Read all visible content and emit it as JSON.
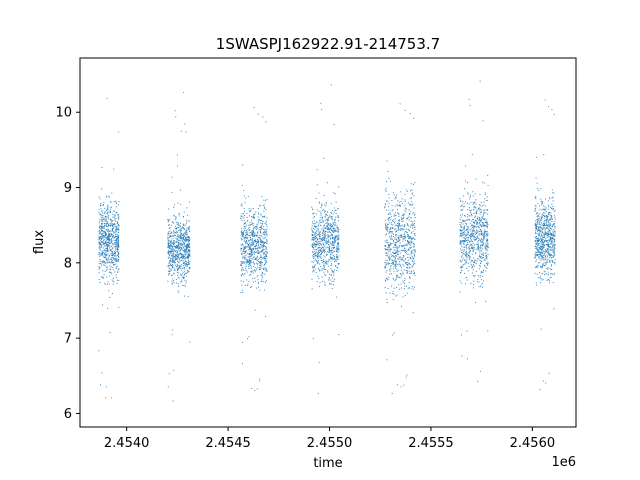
{
  "chart_data": {
    "type": "scatter",
    "title": "1SWASPJ162922.91-214753.7",
    "xlabel": "time",
    "ylabel": "flux",
    "x_offset_label": "1e6",
    "xlim": [
      2453770,
      2456215
    ],
    "ylim": [
      5.82,
      10.72
    ],
    "x_ticks": [
      2.454,
      2.4545,
      2.455,
      2.4555,
      2.456
    ],
    "x_tick_labels": [
      "2.4540",
      "2.4545",
      "2.4550",
      "2.4555",
      "2.4560"
    ],
    "y_ticks": [
      6,
      7,
      8,
      9,
      10
    ],
    "y_tick_labels": [
      "6",
      "7",
      "8",
      "9",
      "10"
    ],
    "grid": false,
    "marker_color": "#1f77b4",
    "seasons": [
      {
        "x_start": 2453860,
        "x_end": 2453960,
        "center": 8.3,
        "spread": 0.35
      },
      {
        "x_start": 2454200,
        "x_end": 2454310,
        "center": 8.2,
        "spread": 0.3
      },
      {
        "x_start": 2454560,
        "x_end": 2454690,
        "center": 8.25,
        "spread": 0.35
      },
      {
        "x_start": 2454910,
        "x_end": 2455045,
        "center": 8.3,
        "spread": 0.35
      },
      {
        "x_start": 2455270,
        "x_end": 2455420,
        "center": 8.3,
        "spread": 0.45
      },
      {
        "x_start": 2455640,
        "x_end": 2455780,
        "center": 8.35,
        "spread": 0.4
      },
      {
        "x_start": 2456010,
        "x_end": 2456110,
        "center": 8.35,
        "spread": 0.35
      }
    ]
  }
}
